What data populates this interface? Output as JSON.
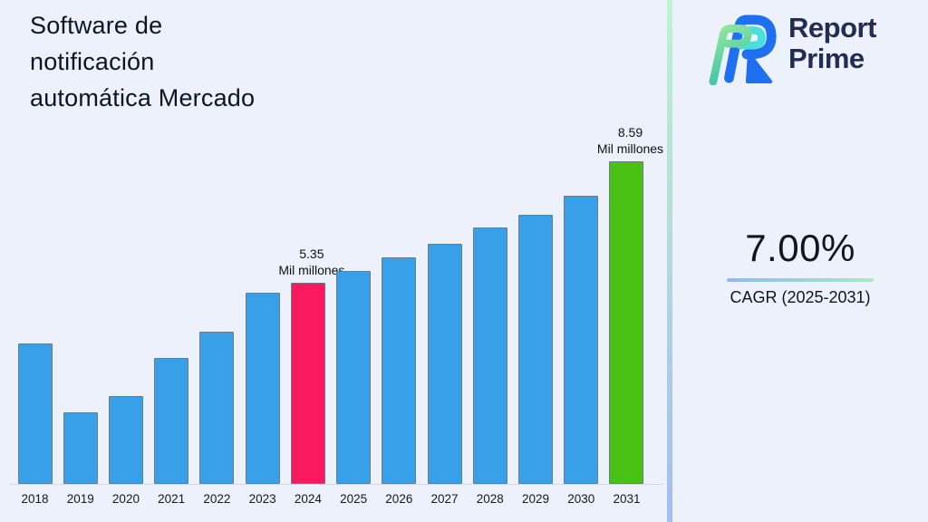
{
  "background_color": "#edf1fb",
  "title": "Software de\nnotificación\nautomática Mercado",
  "logo": {
    "line1": "Report",
    "line2": "Prime",
    "icon": "report-prime-logo-icon",
    "text_color": "#232c52",
    "icon_colors": {
      "blue": "#1e70f0",
      "cyan": "#4adfde",
      "green_light": "#97e89d",
      "green_teal": "#3dc5a6"
    }
  },
  "divider_colors": [
    "#bdf4d1",
    "#b4ded8",
    "#a3bdf3"
  ],
  "cagr": {
    "value": "7.00%",
    "label": "CAGR (2025-2031)",
    "underline_colors": [
      "#92b8f2",
      "#ace8c3"
    ]
  },
  "chart_data": {
    "type": "bar",
    "title": "Software de notificación automática Mercado",
    "categories": [
      "2018",
      "2019",
      "2020",
      "2021",
      "2022",
      "2023",
      "2024",
      "2025",
      "2026",
      "2027",
      "2028",
      "2029",
      "2030",
      "2031"
    ],
    "values": [
      3.75,
      1.9,
      2.33,
      3.36,
      4.06,
      5.09,
      5.35,
      5.67,
      6.03,
      6.39,
      6.82,
      7.18,
      7.68,
      8.59
    ],
    "unit": "Mil millones",
    "xlabel": "",
    "ylabel": "",
    "ylim": [
      0,
      9.2
    ],
    "grid": false,
    "legend": false,
    "colors": {
      "default": "#37a0e8",
      "bar_border": "#6e7b87"
    },
    "highlighted": {
      "2024": "#fa195f",
      "2031": "#48c112"
    },
    "data_labels": [
      {
        "category": "2024",
        "value_text": "5.35",
        "unit_text": "Mil millones"
      },
      {
        "category": "2031",
        "value_text": "8.59",
        "unit_text": "Mil millones"
      }
    ]
  }
}
